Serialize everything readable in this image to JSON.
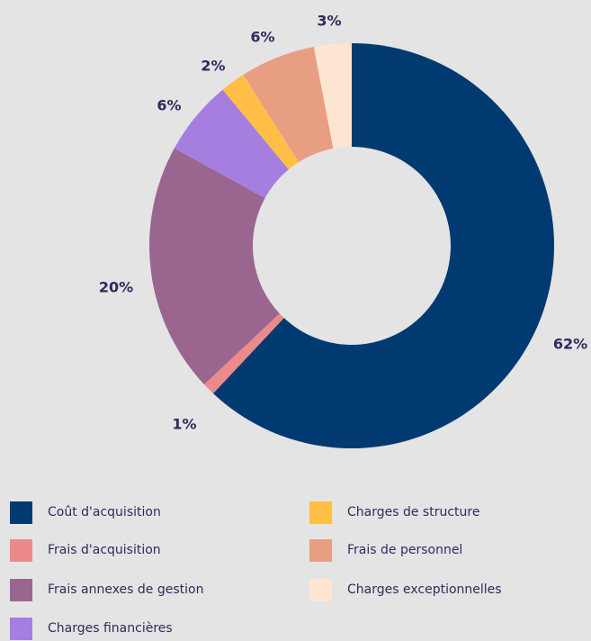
{
  "chart_data": {
    "type": "pie",
    "donut": true,
    "categories": [
      "Coût d'acquisition",
      "Frais d'acquisition",
      "Frais annexes de gestion",
      "Charges financières",
      "Charges de structure",
      "Frais de personnel",
      "Charges exceptionnelles"
    ],
    "values": [
      62,
      1,
      20,
      6,
      2,
      6,
      3
    ],
    "labels": [
      "62%",
      "1%",
      "20%",
      "6%",
      "2%",
      "6%",
      "3%"
    ],
    "colors": [
      "#003a70",
      "#ec8a8b",
      "#9a6690",
      "#a57ee0",
      "#ffbf47",
      "#e89e83",
      "#fde5d2"
    ],
    "legend_position": "bottom",
    "legend_columns": 2
  }
}
